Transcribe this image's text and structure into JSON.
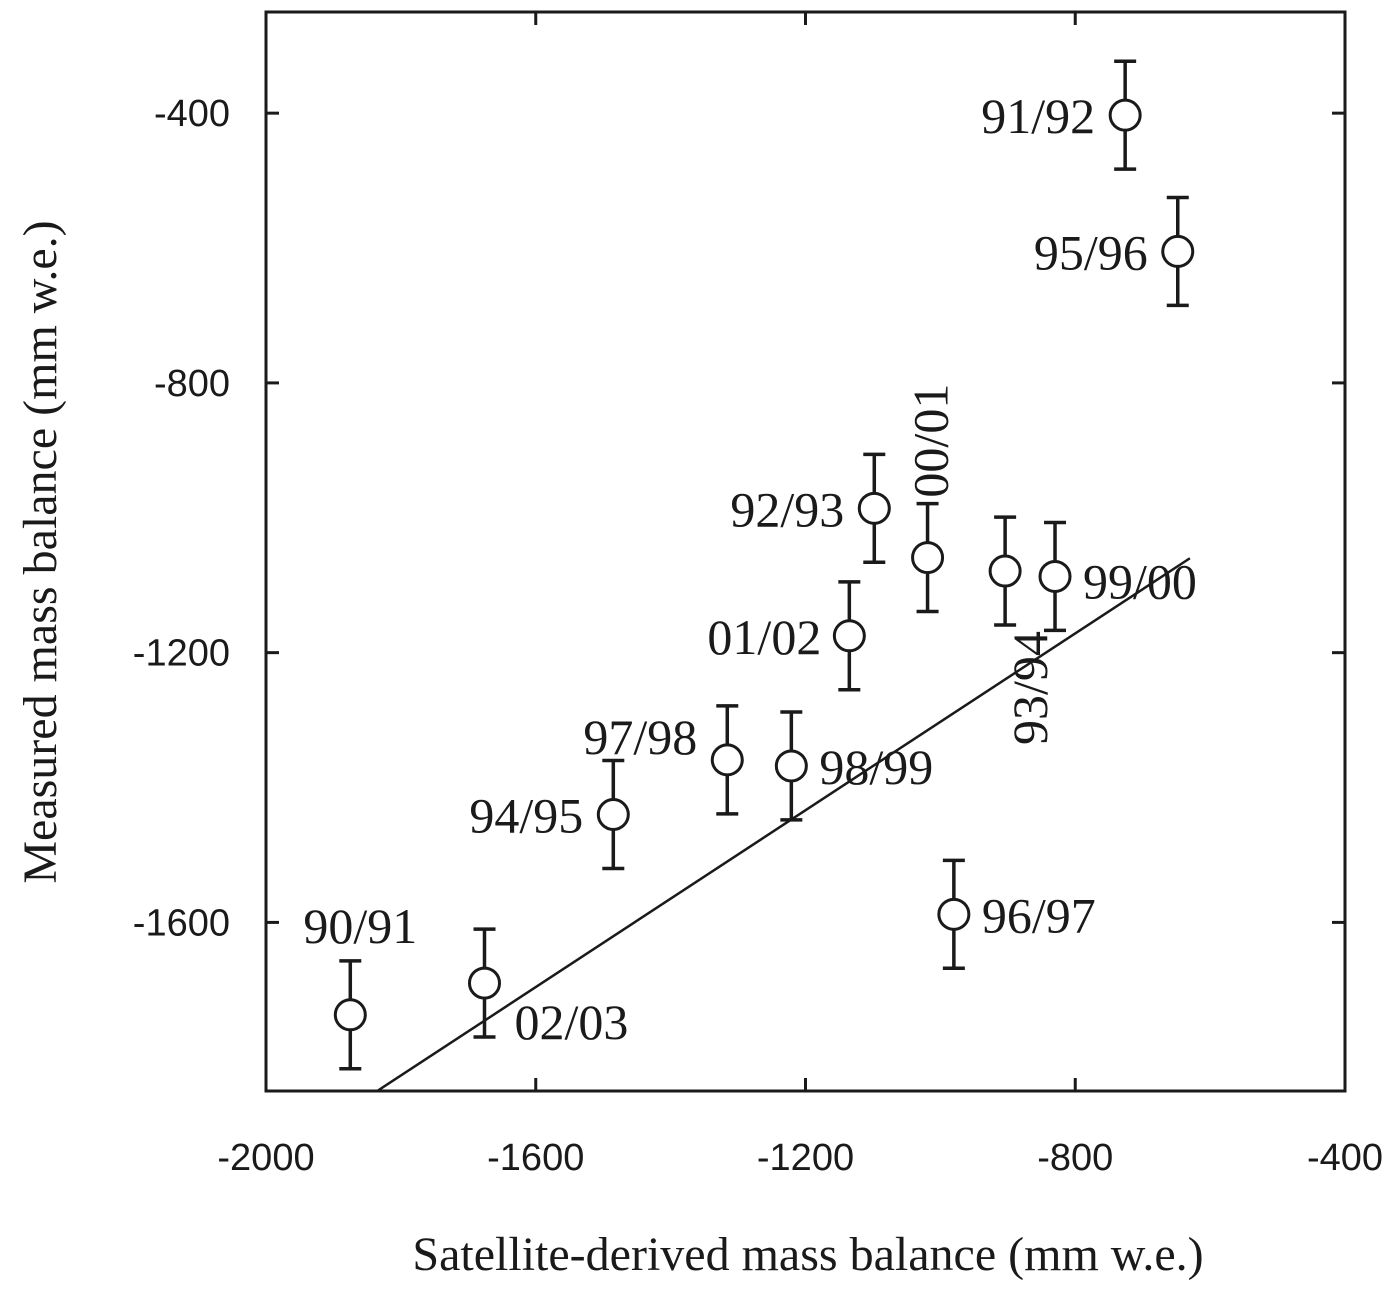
{
  "chart_data": {
    "type": "scatter",
    "title": "",
    "xlabel": "Satellite-derived mass balance (mm w.e.)",
    "ylabel": "Measured mass balance (mm w.e.)",
    "xlim": [
      -2000,
      -400
    ],
    "ylim": [
      -1850,
      -250
    ],
    "xticks": [
      -2000,
      -1600,
      -1200,
      -800,
      -400
    ],
    "yticks": [
      -400,
      -800,
      -1200,
      -1600
    ],
    "xtick_labels": [
      "-2000",
      "-1600",
      "-1200",
      "-800",
      "-400"
    ],
    "ytick_labels": [
      "-400",
      "-800",
      "-1200",
      "-1600"
    ],
    "grid": false,
    "marker": "open-circle",
    "error_bar": 80,
    "fit_line": {
      "x": [
        -1835,
        -630
      ],
      "y": [
        -1850,
        -1060
      ]
    },
    "points": [
      {
        "label": "90/91",
        "x": -1875,
        "y": -1737
      },
      {
        "label": "91/92",
        "x": -726,
        "y": -403
      },
      {
        "label": "92/93",
        "x": -1098,
        "y": -986
      },
      {
        "label": "93/94",
        "x": -904,
        "y": -1079
      },
      {
        "label": "94/95",
        "x": -1485,
        "y": -1440
      },
      {
        "label": "95/96",
        "x": -648,
        "y": -605
      },
      {
        "label": "96/97",
        "x": -980,
        "y": -1588
      },
      {
        "label": "97/98",
        "x": -1316,
        "y": -1359
      },
      {
        "label": "98/99",
        "x": -1221,
        "y": -1368
      },
      {
        "label": "99/00",
        "x": -830,
        "y": -1087
      },
      {
        "label": "00/01",
        "x": -1019,
        "y": -1059
      },
      {
        "label": "01/02",
        "x": -1135,
        "y": -1175
      },
      {
        "label": "02/03",
        "x": -1676,
        "y": -1690
      }
    ]
  }
}
